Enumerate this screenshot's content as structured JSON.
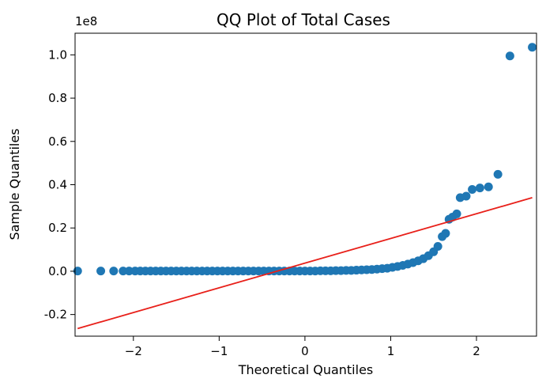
{
  "chart_data": {
    "type": "scatter",
    "title": "QQ Plot of Total Cases",
    "xlabel": "Theoretical Quantiles",
    "ylabel": "Sample Quantiles",
    "y_offset_label": "1e8",
    "xlim": [
      -2.68,
      2.7
    ],
    "ylim": [
      -0.3,
      1.1
    ],
    "x_ticks": [
      {
        "value": -2,
        "label": "−2"
      },
      {
        "value": -1,
        "label": "−1"
      },
      {
        "value": 0,
        "label": "0"
      },
      {
        "value": 1,
        "label": "1"
      },
      {
        "value": 2,
        "label": "2"
      }
    ],
    "y_ticks": [
      {
        "value": -0.2,
        "label": "-0.2"
      },
      {
        "value": 0.0,
        "label": "0.0"
      },
      {
        "value": 0.2,
        "label": "0.2"
      },
      {
        "value": 0.4,
        "label": "0.4"
      },
      {
        "value": 0.6,
        "label": "0.6"
      },
      {
        "value": 0.8,
        "label": "0.8"
      },
      {
        "value": 1.0,
        "label": "1.0"
      }
    ],
    "grid": false,
    "marker_color": "#1f77b4",
    "line_color": "#e8201a",
    "reference_line": {
      "x": [
        -2.65,
        2.65
      ],
      "y": [
        -0.265,
        0.34
      ]
    },
    "points": [
      {
        "x": -2.65,
        "y": 0.001
      },
      {
        "x": -2.38,
        "y": 0.001
      },
      {
        "x": -2.23,
        "y": 0.001
      },
      {
        "x": -2.12,
        "y": 0.001
      },
      {
        "x": -2.05,
        "y": 0.001
      },
      {
        "x": -1.98,
        "y": 0.001
      },
      {
        "x": -1.92,
        "y": 0.001
      },
      {
        "x": -1.86,
        "y": 0.001
      },
      {
        "x": -1.8,
        "y": 0.001
      },
      {
        "x": -1.74,
        "y": 0.001
      },
      {
        "x": -1.68,
        "y": 0.001
      },
      {
        "x": -1.62,
        "y": 0.001
      },
      {
        "x": -1.56,
        "y": 0.001
      },
      {
        "x": -1.5,
        "y": 0.001
      },
      {
        "x": -1.44,
        "y": 0.001
      },
      {
        "x": -1.38,
        "y": 0.001
      },
      {
        "x": -1.32,
        "y": 0.001
      },
      {
        "x": -1.26,
        "y": 0.001
      },
      {
        "x": -1.2,
        "y": 0.001
      },
      {
        "x": -1.14,
        "y": 0.001
      },
      {
        "x": -1.08,
        "y": 0.001
      },
      {
        "x": -1.02,
        "y": 0.001
      },
      {
        "x": -0.96,
        "y": 0.001
      },
      {
        "x": -0.9,
        "y": 0.001
      },
      {
        "x": -0.84,
        "y": 0.001
      },
      {
        "x": -0.78,
        "y": 0.001
      },
      {
        "x": -0.72,
        "y": 0.001
      },
      {
        "x": -0.66,
        "y": 0.001
      },
      {
        "x": -0.6,
        "y": 0.001
      },
      {
        "x": -0.54,
        "y": 0.001
      },
      {
        "x": -0.48,
        "y": 0.001
      },
      {
        "x": -0.42,
        "y": 0.001
      },
      {
        "x": -0.36,
        "y": 0.001
      },
      {
        "x": -0.3,
        "y": 0.001
      },
      {
        "x": -0.24,
        "y": 0.001
      },
      {
        "x": -0.18,
        "y": 0.001
      },
      {
        "x": -0.12,
        "y": 0.001
      },
      {
        "x": -0.06,
        "y": 0.001
      },
      {
        "x": 0.0,
        "y": 0.001
      },
      {
        "x": 0.06,
        "y": 0.001
      },
      {
        "x": 0.12,
        "y": 0.001
      },
      {
        "x": 0.18,
        "y": 0.002
      },
      {
        "x": 0.24,
        "y": 0.002
      },
      {
        "x": 0.3,
        "y": 0.002
      },
      {
        "x": 0.36,
        "y": 0.003
      },
      {
        "x": 0.42,
        "y": 0.003
      },
      {
        "x": 0.48,
        "y": 0.004
      },
      {
        "x": 0.54,
        "y": 0.004
      },
      {
        "x": 0.6,
        "y": 0.005
      },
      {
        "x": 0.66,
        "y": 0.006
      },
      {
        "x": 0.72,
        "y": 0.007
      },
      {
        "x": 0.78,
        "y": 0.008
      },
      {
        "x": 0.84,
        "y": 0.01
      },
      {
        "x": 0.9,
        "y": 0.012
      },
      {
        "x": 0.96,
        "y": 0.014
      },
      {
        "x": 1.02,
        "y": 0.018
      },
      {
        "x": 1.08,
        "y": 0.022
      },
      {
        "x": 1.14,
        "y": 0.027
      },
      {
        "x": 1.2,
        "y": 0.033
      },
      {
        "x": 1.26,
        "y": 0.04
      },
      {
        "x": 1.32,
        "y": 0.048
      },
      {
        "x": 1.38,
        "y": 0.058
      },
      {
        "x": 1.44,
        "y": 0.072
      },
      {
        "x": 1.5,
        "y": 0.09
      },
      {
        "x": 1.55,
        "y": 0.115
      },
      {
        "x": 1.6,
        "y": 0.16
      },
      {
        "x": 1.64,
        "y": 0.175
      },
      {
        "x": 1.68,
        "y": 0.24
      },
      {
        "x": 1.72,
        "y": 0.25
      },
      {
        "x": 1.77,
        "y": 0.265
      },
      {
        "x": 1.81,
        "y": 0.34
      },
      {
        "x": 1.88,
        "y": 0.347
      },
      {
        "x": 1.95,
        "y": 0.378
      },
      {
        "x": 2.04,
        "y": 0.385
      },
      {
        "x": 2.14,
        "y": 0.39
      },
      {
        "x": 2.25,
        "y": 0.448
      },
      {
        "x": 2.39,
        "y": 0.995
      },
      {
        "x": 2.65,
        "y": 1.035
      }
    ]
  }
}
